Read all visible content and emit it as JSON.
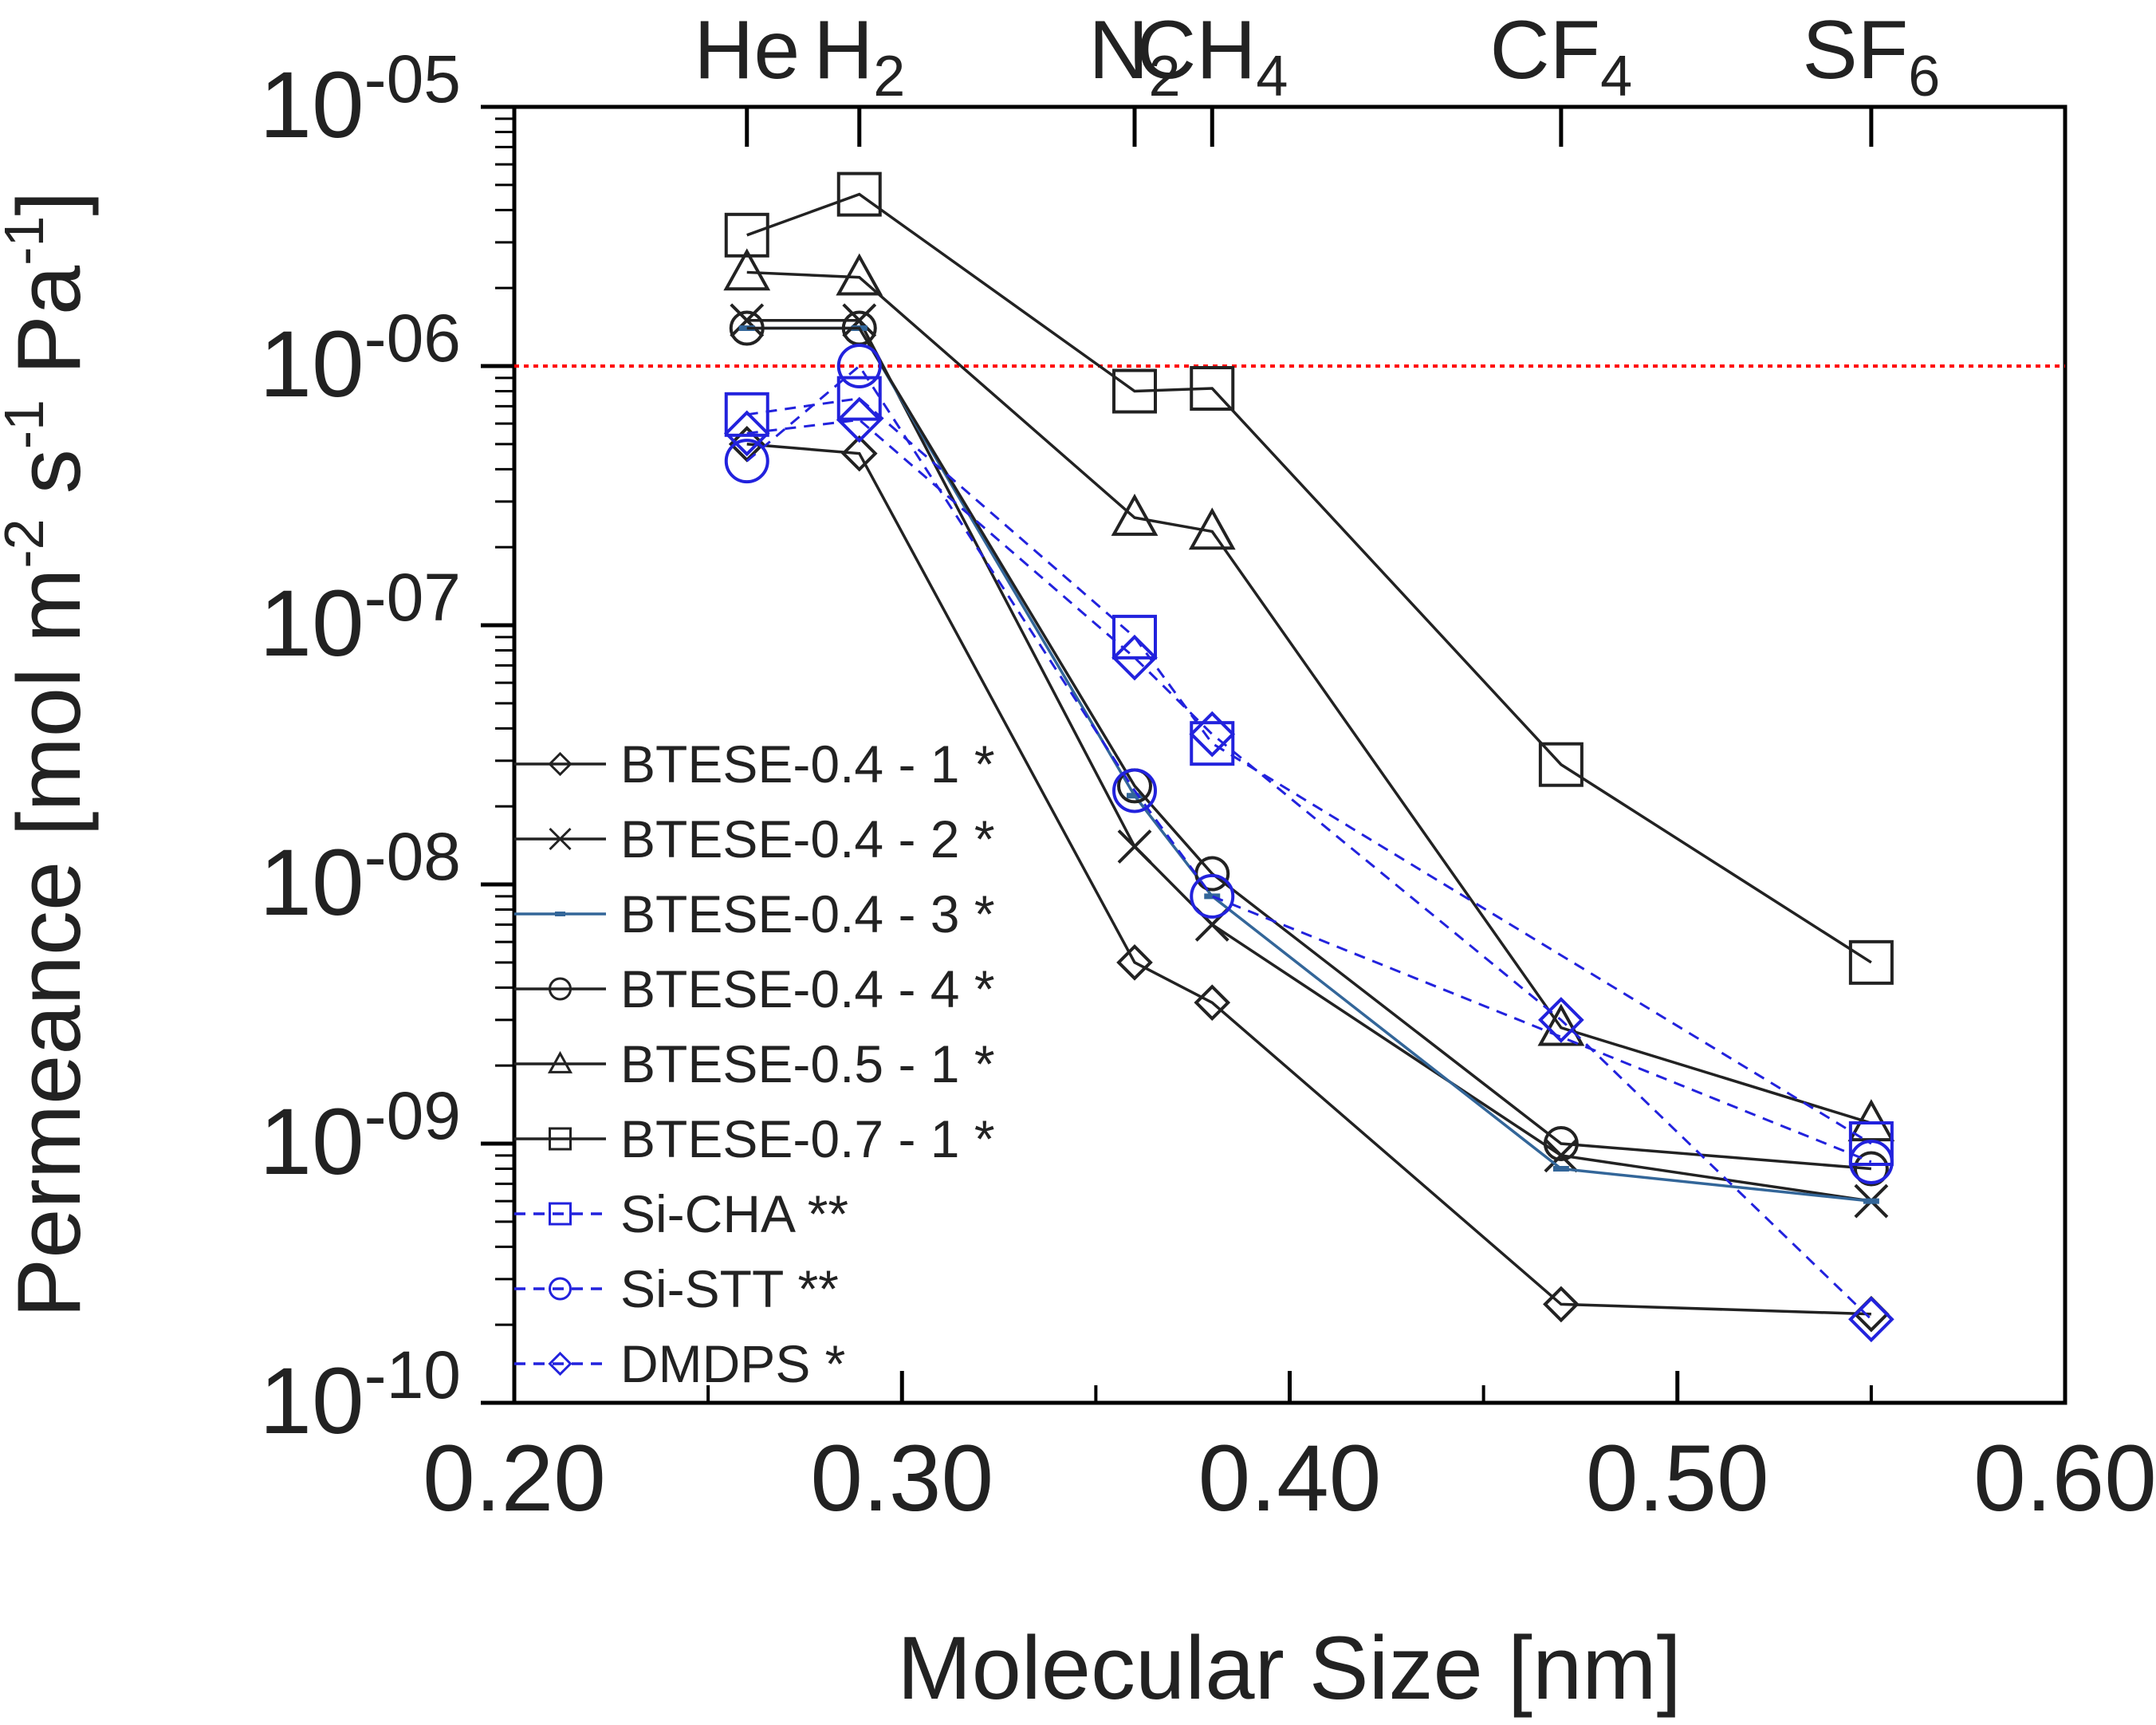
{
  "chart_data": {
    "type": "line",
    "xlabel": "Molecular Size [nm]",
    "ylabel": "Permeance [mol m-2 s-1 Pa-1]",
    "ylabel_parts": [
      "Permeance [mol m",
      "-2",
      " s",
      "-1",
      " Pa",
      "-1",
      "]"
    ],
    "xlim": [
      0.2,
      0.6
    ],
    "ylim": [
      1e-10,
      1e-05
    ],
    "y_scale": "log",
    "x_ticks": [
      0.2,
      0.3,
      0.4,
      0.5,
      0.6
    ],
    "x_tick_labels": [
      "0.20",
      "0.30",
      "0.40",
      "0.50",
      "0.60"
    ],
    "y_ticks": [
      1e-10,
      1e-09,
      1e-08,
      1e-07,
      1e-06,
      1e-05
    ],
    "y_tick_labels": [
      {
        "base": "10",
        "exp": "-10"
      },
      {
        "base": "10",
        "exp": "-09"
      },
      {
        "base": "10",
        "exp": "-08"
      },
      {
        "base": "10",
        "exp": "-07"
      },
      {
        "base": "10",
        "exp": "-06"
      },
      {
        "base": "10",
        "exp": "-05"
      }
    ],
    "top_axis_gases": [
      {
        "name": "He",
        "sub": "",
        "x": 0.26
      },
      {
        "name": "H",
        "sub": "2",
        "x": 0.289
      },
      {
        "name": "N",
        "sub": "2",
        "x": 0.36
      },
      {
        "name": "CH",
        "sub": "4",
        "x": 0.38
      },
      {
        "name": "CF",
        "sub": "4",
        "x": 0.47
      },
      {
        "name": "SF",
        "sub": "6",
        "x": 0.55
      }
    ],
    "reference_line": {
      "y": 1e-06,
      "color": "#ff0000",
      "style": "dotted"
    },
    "x": [
      0.26,
      0.289,
      0.36,
      0.38,
      0.47,
      0.55
    ],
    "series": [
      {
        "name": "BTESE-0.4 - 1 *",
        "marker": "diamond",
        "color": "#222222",
        "dashed": false,
        "values": [
          5e-07,
          4.6e-07,
          5e-09,
          3.5e-09,
          2.4e-10,
          2.2e-10
        ]
      },
      {
        "name": "BTESE-0.4 - 2 *",
        "marker": "x",
        "color": "#222222",
        "dashed": false,
        "values": [
          1.5e-06,
          1.5e-06,
          1.4e-08,
          7e-09,
          9e-10,
          6e-10
        ]
      },
      {
        "name": "BTESE-0.4 - 3 *",
        "marker": "dash",
        "color": "#336699",
        "dashed": false,
        "values": [
          1.4e-06,
          1.4e-06,
          2.2e-08,
          9e-09,
          8e-10,
          6e-10
        ]
      },
      {
        "name": "BTESE-0.4 - 4 *",
        "marker": "circle",
        "color": "#222222",
        "dashed": false,
        "values": [
          1.4e-06,
          1.4e-06,
          2.4e-08,
          1.1e-08,
          1e-09,
          8e-10
        ]
      },
      {
        "name": "BTESE-0.5 - 1 *",
        "marker": "triangle",
        "color": "#222222",
        "dashed": false,
        "values": [
          2.3e-06,
          2.2e-06,
          2.6e-07,
          2.3e-07,
          2.8e-09,
          1.2e-09
        ]
      },
      {
        "name": "BTESE-0.7 - 1 *",
        "marker": "square",
        "color": "#222222",
        "dashed": false,
        "values": [
          3.2e-06,
          4.6e-06,
          8e-07,
          8.2e-07,
          2.9e-08,
          5e-09
        ]
      },
      {
        "name": "Si-CHA **",
        "marker": "square",
        "color": "#2222dd",
        "dashed": true,
        "values": [
          6.5e-07,
          7.5e-07,
          9e-08,
          3.5e-08,
          null,
          1e-09
        ]
      },
      {
        "name": "Si-STT **",
        "marker": "circle",
        "color": "#2222dd",
        "dashed": true,
        "values": [
          4.3e-07,
          1e-06,
          2.3e-08,
          9e-09,
          null,
          8.5e-10
        ]
      },
      {
        "name": "DMDPS *",
        "marker": "diamond",
        "color": "#2222dd",
        "dashed": true,
        "values": [
          5.5e-07,
          6.2e-07,
          7.5e-08,
          3.8e-08,
          3e-09,
          2.1e-10
        ]
      }
    ]
  }
}
